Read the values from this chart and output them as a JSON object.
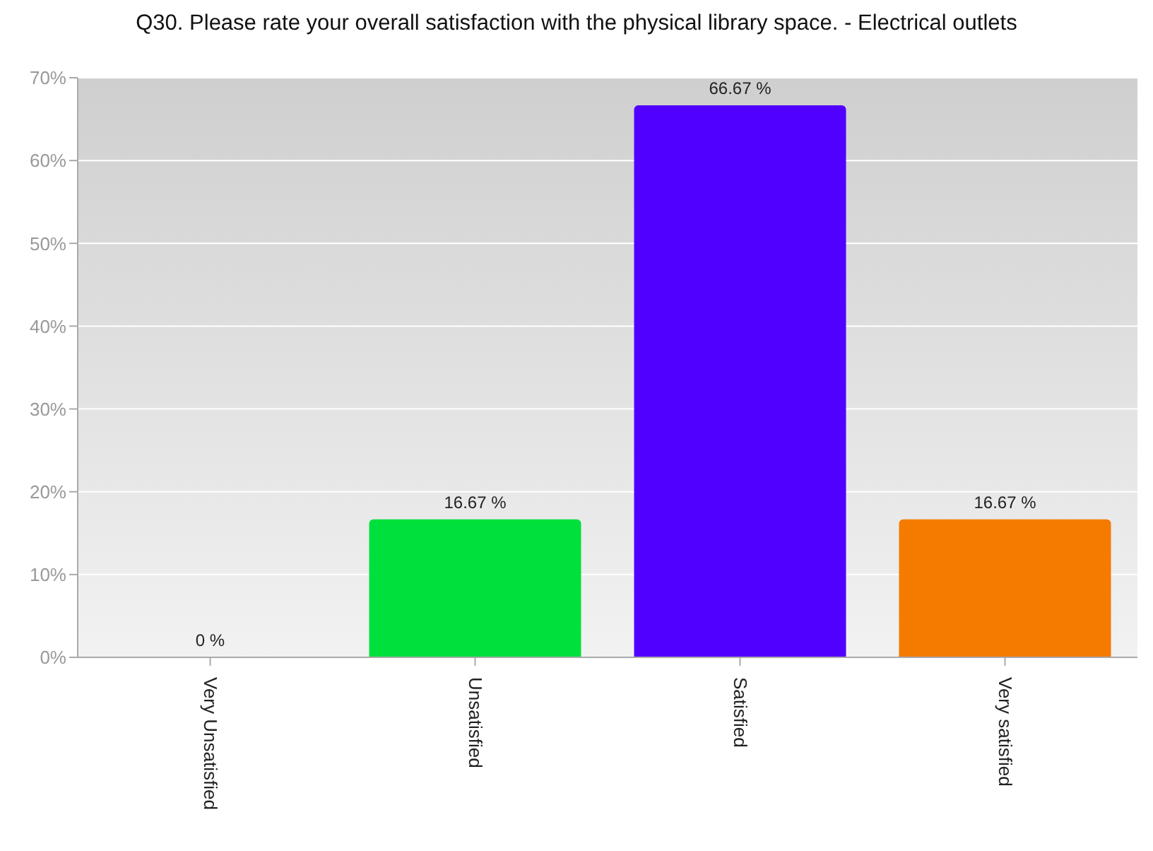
{
  "chart_data": {
    "type": "bar",
    "title": "Q30. Please rate your overall satisfaction with the physical library space. - Electrical outlets",
    "categories": [
      "Very Unsatisfied",
      "Unsatisfied",
      "Satisfied",
      "Very satisfied"
    ],
    "values": [
      0,
      16.67,
      66.67,
      16.67
    ],
    "colors": [
      "#3366ff",
      "#00e03c",
      "#5000ff",
      "#f57a00"
    ],
    "value_labels": [
      "0 %",
      "16.67 %",
      "66.67 %",
      "16.67 %"
    ],
    "ylim": [
      0,
      70
    ],
    "yticks": [
      {
        "value": 0,
        "label": "0%"
      },
      {
        "value": 10,
        "label": "10%"
      },
      {
        "value": 20,
        "label": "20%"
      },
      {
        "value": 30,
        "label": "30%"
      },
      {
        "value": 40,
        "label": "40%"
      },
      {
        "value": 50,
        "label": "50%"
      },
      {
        "value": 60,
        "label": "60%"
      },
      {
        "value": 70,
        "label": "70%"
      }
    ],
    "grid": "y"
  }
}
